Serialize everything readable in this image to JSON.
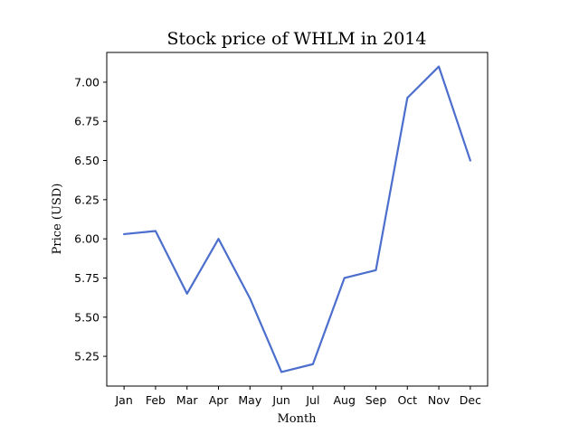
{
  "chart_data": {
    "type": "line",
    "title": "Stock price of WHLM in 2014",
    "xlabel": "Month",
    "ylabel": "Price (USD)",
    "categories": [
      "Jan",
      "Feb",
      "Mar",
      "Apr",
      "May",
      "Jun",
      "Jul",
      "Aug",
      "Sep",
      "Oct",
      "Nov",
      "Dec"
    ],
    "series": [
      {
        "values": [
          6.03,
          6.05,
          5.65,
          6.0,
          5.62,
          5.15,
          5.2,
          5.75,
          5.8,
          6.9,
          7.1,
          6.5
        ],
        "color": "#4c6fcd"
      }
    ],
    "ylim": [
      5.06,
      7.19
    ],
    "yticks": [
      "5.25",
      "5.50",
      "5.75",
      "6.00",
      "6.25",
      "6.50",
      "6.75",
      "7.00"
    ],
    "grid": false,
    "legend": "none"
  }
}
